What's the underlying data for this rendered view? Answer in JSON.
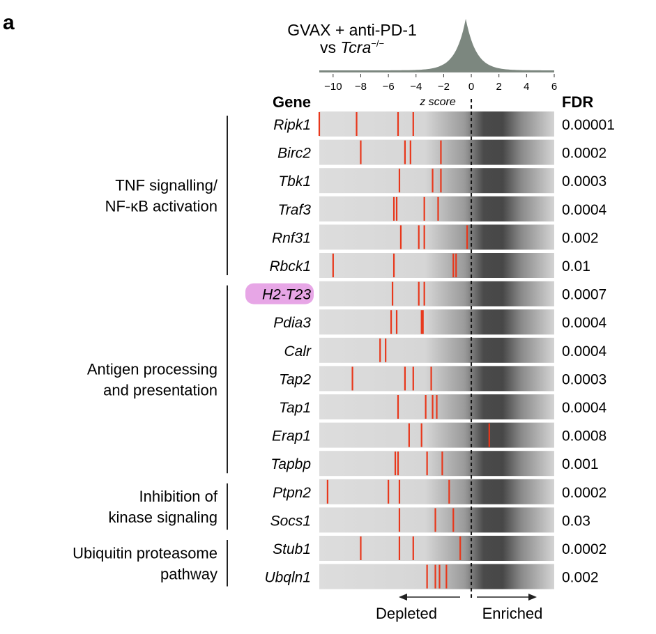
{
  "panel_label": "a",
  "chart_data": {
    "type": "heatmap",
    "title_line1": "GVAX + anti-PD-1",
    "title_line2_prefix": "vs ",
    "title_line2_gene": "Tcra",
    "title_line2_sup": "−/−",
    "xlabel": "z score",
    "xlim": [
      -11,
      6
    ],
    "xticks": [
      -10,
      -8,
      -6,
      -4,
      -2,
      0,
      2,
      4,
      6
    ],
    "tick_labels": [
      "−10",
      "−8",
      "−6",
      "−4",
      "−2",
      "0",
      "2",
      "4",
      "6"
    ],
    "gene_header": "Gene",
    "fdr_header": "FDR",
    "reference_line_x": 0,
    "depleted_label": "Depleted",
    "enriched_label": "Enriched",
    "colors": {
      "guide": "#e8371b",
      "background_light": "#dddddd",
      "background_dark": "#4a4a4a",
      "histogram": "#7c877f",
      "highlight": "#e7a6e6"
    },
    "groups": [
      {
        "lines": [
          "TNF signalling/",
          "NF-κB activation"
        ],
        "rows": [
          0,
          5
        ]
      },
      {
        "lines": [
          "Antigen processing",
          "and presentation"
        ],
        "rows": [
          6,
          12
        ]
      },
      {
        "lines": [
          "Inhibition of",
          "kinase signaling"
        ],
        "rows": [
          13,
          14
        ]
      },
      {
        "lines": [
          "Ubiquitin proteasome",
          "pathway"
        ],
        "rows": [
          15,
          16
        ]
      }
    ],
    "rows": [
      {
        "gene": "Ripk1",
        "fdr": "0.00001",
        "guides": [
          -11.0,
          -8.3,
          -5.3,
          -4.2
        ],
        "highlight": false
      },
      {
        "gene": "Birc2",
        "fdr": "0.0002",
        "guides": [
          -8.0,
          -4.8,
          -4.4,
          -2.2
        ],
        "highlight": false
      },
      {
        "gene": "Tbk1",
        "fdr": "0.0003",
        "guides": [
          -5.2,
          -2.8,
          -2.2
        ],
        "highlight": false
      },
      {
        "gene": "Traf3",
        "fdr": "0.0004",
        "guides": [
          -5.6,
          -5.4,
          -3.4,
          -2.4
        ],
        "highlight": false
      },
      {
        "gene": "Rnf31",
        "fdr": "0.002",
        "guides": [
          -5.1,
          -3.8,
          -3.4,
          -0.3
        ],
        "highlight": false
      },
      {
        "gene": "Rbck1",
        "fdr": "0.01",
        "guides": [
          -10.0,
          -5.6,
          -1.3,
          -1.1
        ],
        "highlight": false
      },
      {
        "gene": "H2-T23",
        "fdr": "0.0007",
        "guides": [
          -5.7,
          -3.8,
          -3.4
        ],
        "highlight": true
      },
      {
        "gene": "Pdia3",
        "fdr": "0.0004",
        "guides": [
          -5.8,
          -5.4,
          -3.6,
          -3.5
        ],
        "highlight": false
      },
      {
        "gene": "Calr",
        "fdr": "0.0004",
        "guides": [
          -6.6,
          -6.2
        ],
        "highlight": false
      },
      {
        "gene": "Tap2",
        "fdr": "0.0003",
        "guides": [
          -8.6,
          -4.8,
          -4.2,
          -2.9
        ],
        "highlight": false
      },
      {
        "gene": "Tap1",
        "fdr": "0.0004",
        "guides": [
          -5.3,
          -3.3,
          -2.8,
          -2.5
        ],
        "highlight": false
      },
      {
        "gene": "Erap1",
        "fdr": "0.0008",
        "guides": [
          -4.5,
          -3.6,
          1.3
        ],
        "highlight": false
      },
      {
        "gene": "Tapbp",
        "fdr": "0.001",
        "guides": [
          -5.5,
          -5.3,
          -3.2,
          -2.1
        ],
        "highlight": false
      },
      {
        "gene": "Ptpn2",
        "fdr": "0.0002",
        "guides": [
          -10.4,
          -6.0,
          -5.2,
          -1.6
        ],
        "highlight": false
      },
      {
        "gene": "Socs1",
        "fdr": "0.03",
        "guides": [
          -5.2,
          -2.6,
          -1.3
        ],
        "highlight": false
      },
      {
        "gene": "Stub1",
        "fdr": "0.0002",
        "guides": [
          -8.0,
          -5.2,
          -4.2,
          -0.8
        ],
        "highlight": false
      },
      {
        "gene": "Ubqln1",
        "fdr": "0.002",
        "guides": [
          -3.2,
          -2.6,
          -2.3,
          -1.8
        ],
        "highlight": false
      }
    ]
  }
}
